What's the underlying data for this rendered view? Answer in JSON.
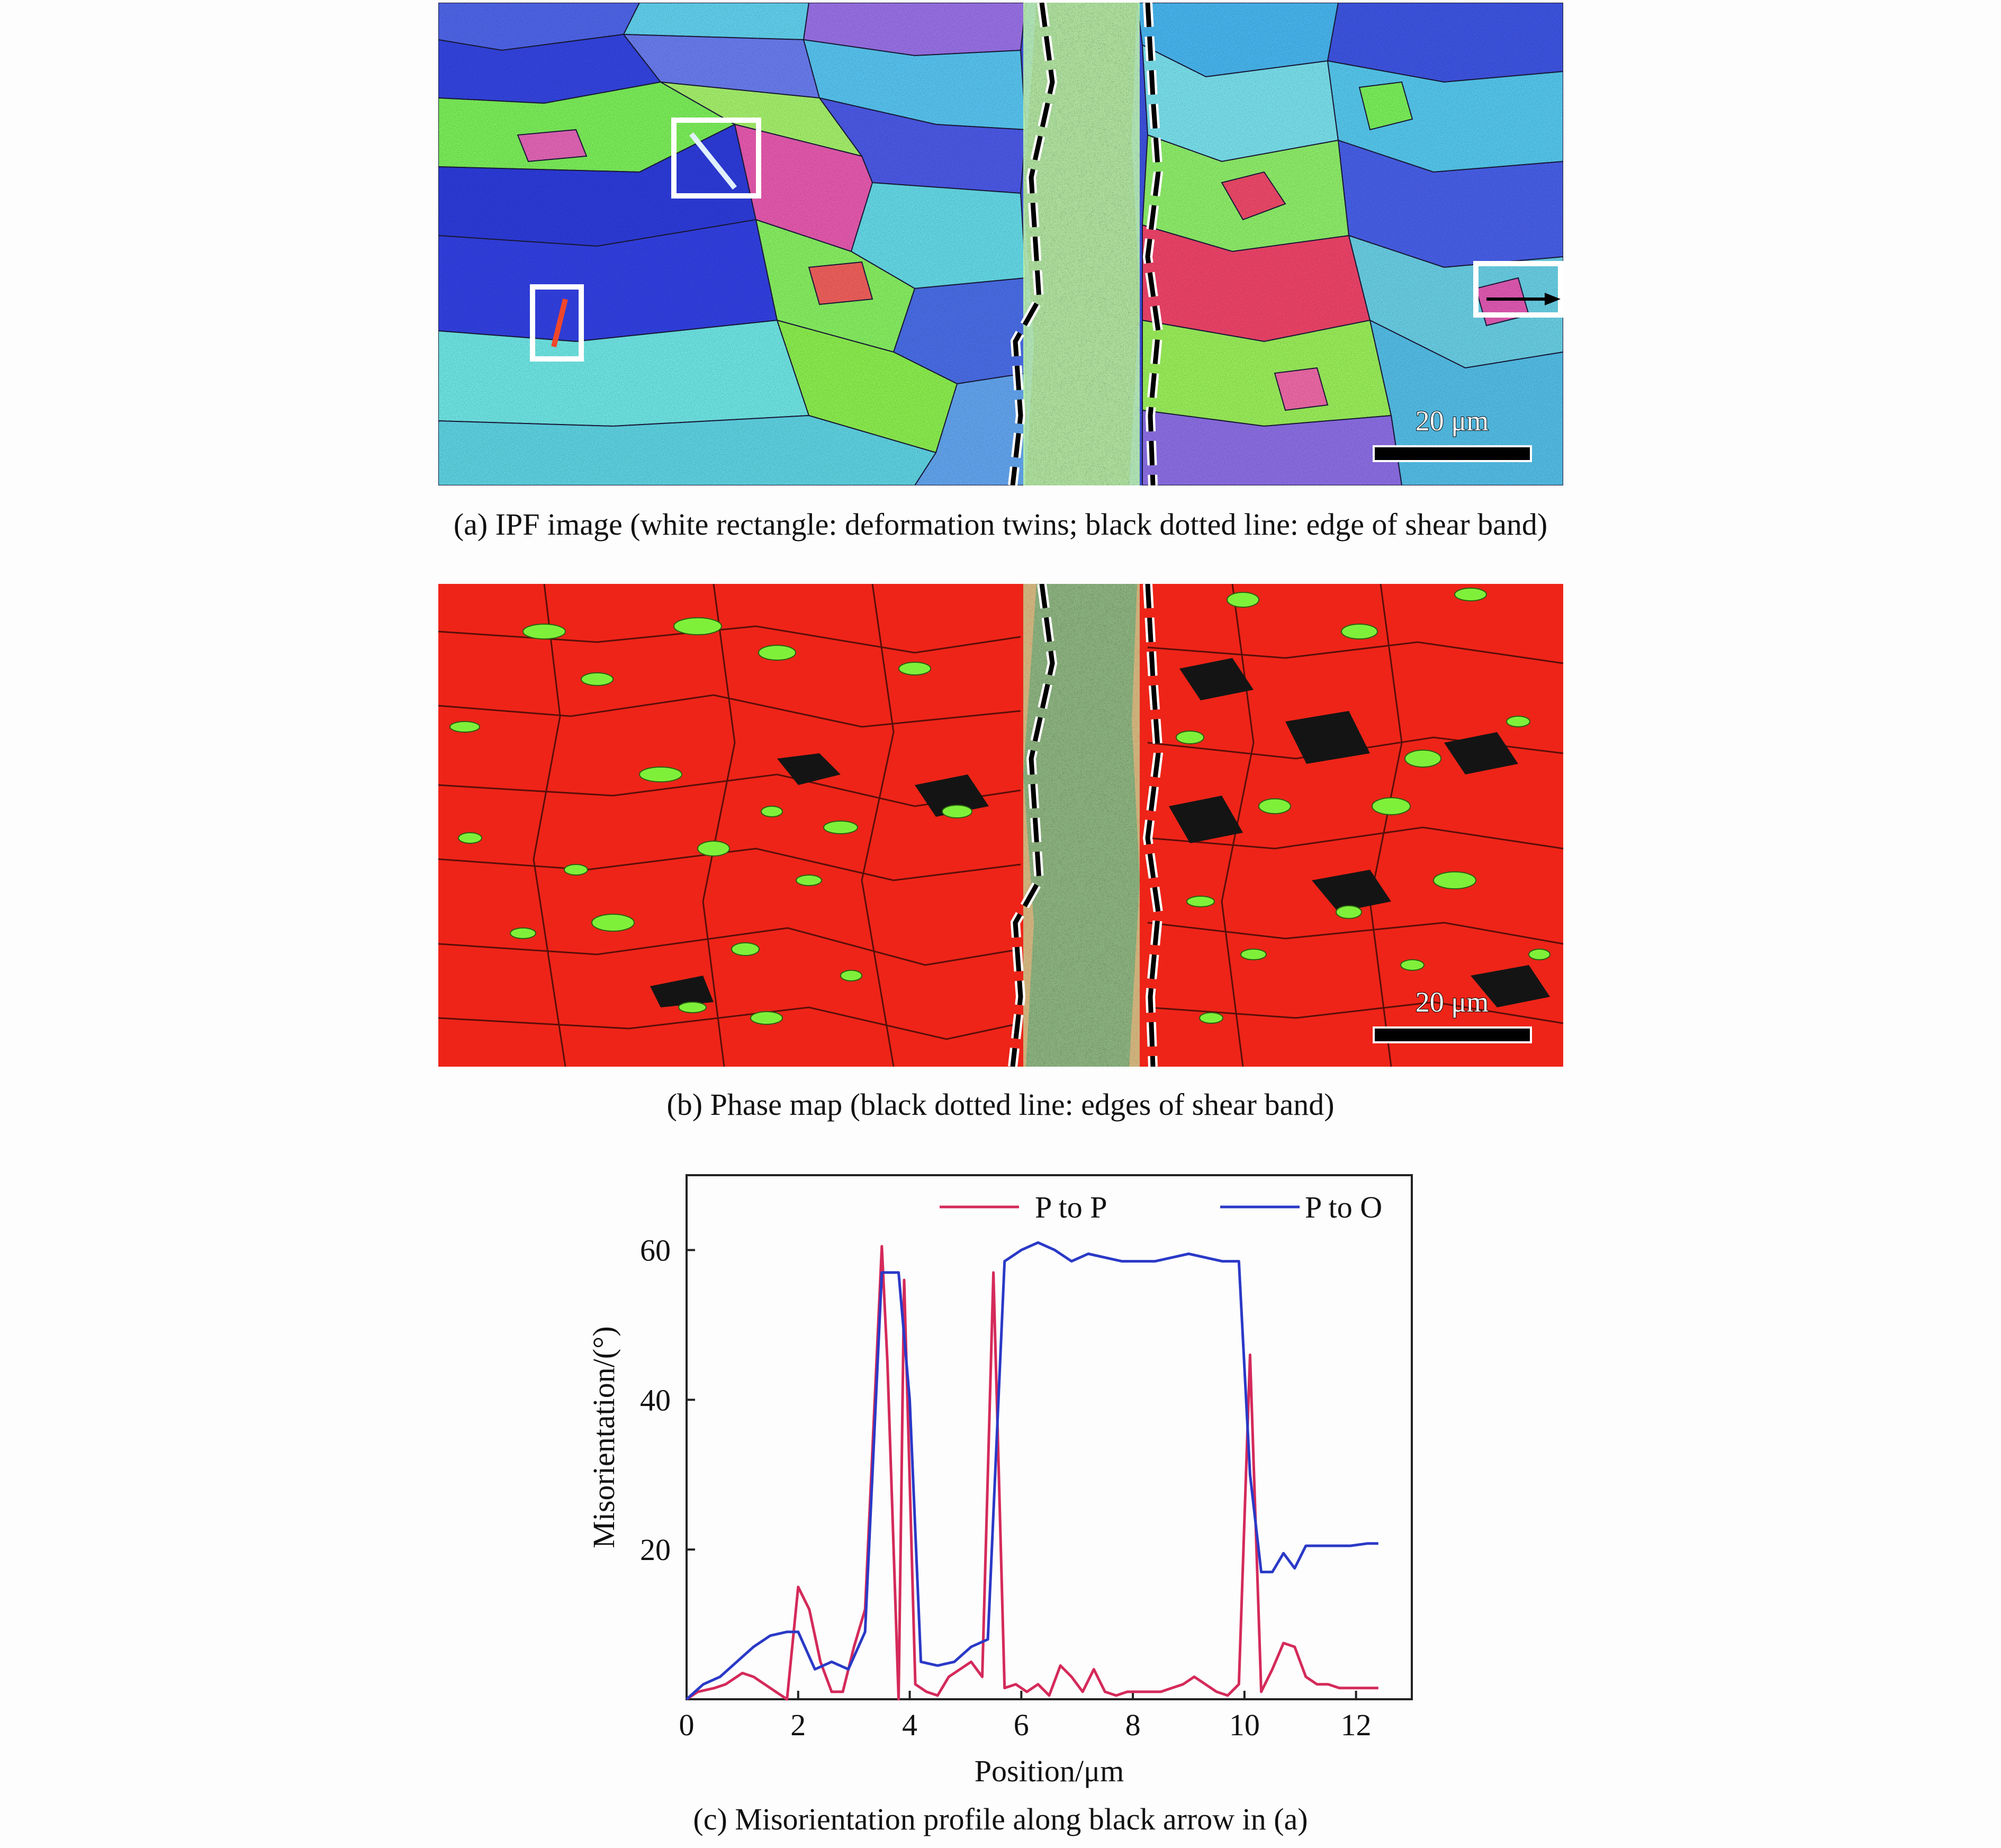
{
  "figure": {
    "caption_a": "(a) IPF image (white rectangle: deformation twins; black dotted line: edge of shear band)",
    "caption_b": "(b) Phase map (black dotted line: edges of shear band)",
    "caption_c": "(c) Misorientation profile along black arrow in (a)",
    "scale_bar_a": "20 μm",
    "scale_bar_b": "20 μm",
    "colors": {
      "ipf_blue": "#2f45e6",
      "ipf_green": "#7ef05a",
      "ipf_cyan": "#5ec8ee",
      "ipf_pink": "#f05aa8",
      "ipf_purple": "#8e5be0",
      "phase_red": "#ee2418",
      "phase_green": "#7ff03a",
      "band_black": "#141414"
    }
  },
  "chart_data": {
    "type": "line",
    "title": "",
    "xlabel": "Position/μm",
    "ylabel": "Misorientation/(°)",
    "xlim": [
      0,
      13
    ],
    "ylim": [
      0,
      70
    ],
    "xticks": [
      0,
      2,
      4,
      6,
      8,
      10,
      12
    ],
    "yticks": [
      20,
      40,
      60
    ],
    "legend_position": "top",
    "grid": false,
    "series": [
      {
        "name": "P to P",
        "color": "#d42a5a",
        "x": [
          0,
          0.2,
          0.5,
          0.7,
          1.0,
          1.2,
          1.4,
          1.6,
          1.8,
          2.0,
          2.2,
          2.4,
          2.6,
          2.8,
          3.0,
          3.2,
          3.5,
          3.6,
          3.8,
          3.9,
          4.1,
          4.3,
          4.5,
          4.7,
          4.9,
          5.1,
          5.3,
          5.5,
          5.7,
          5.9,
          6.1,
          6.3,
          6.5,
          6.7,
          6.9,
          7.1,
          7.3,
          7.5,
          7.7,
          7.9,
          8.1,
          8.3,
          8.5,
          8.7,
          8.9,
          9.1,
          9.3,
          9.5,
          9.7,
          9.9,
          10.1,
          10.3,
          10.5,
          10.7,
          10.9,
          11.1,
          11.3,
          11.5,
          11.7,
          11.9,
          12.1,
          12.4
        ],
        "values": [
          0,
          1,
          1.5,
          2,
          3.5,
          3,
          2,
          1,
          0,
          15,
          12,
          5,
          1,
          1,
          7,
          12,
          60.5,
          45,
          0,
          56,
          2,
          1,
          0.5,
          3,
          4,
          5,
          3,
          57,
          1.5,
          2,
          1,
          2,
          0.5,
          4.5,
          3,
          1,
          4,
          1,
          0.5,
          1,
          1,
          1,
          1,
          1.5,
          2,
          3,
          2,
          1,
          0.5,
          2,
          46,
          1,
          4,
          7.5,
          7,
          3,
          2,
          2,
          1.5,
          1.5,
          1.5,
          1.5
        ]
      },
      {
        "name": "P to O",
        "color": "#2a39c7",
        "x": [
          0,
          0.3,
          0.6,
          0.9,
          1.2,
          1.5,
          1.8,
          2.0,
          2.3,
          2.6,
          2.9,
          3.2,
          3.5,
          3.8,
          4.0,
          4.2,
          4.5,
          4.8,
          5.1,
          5.4,
          5.7,
          6.0,
          6.3,
          6.6,
          6.9,
          7.2,
          7.5,
          7.8,
          8.1,
          8.4,
          8.7,
          9.0,
          9.3,
          9.6,
          9.9,
          10.1,
          10.3,
          10.5,
          10.7,
          10.9,
          11.1,
          11.3,
          11.6,
          11.9,
          12.2,
          12.4
        ],
        "values": [
          0,
          2,
          3,
          5,
          7,
          8.5,
          9,
          9,
          4,
          5,
          4,
          9,
          57,
          57,
          40,
          5,
          4.5,
          5,
          7,
          8,
          58.5,
          60,
          61,
          60,
          58.5,
          59.5,
          59,
          58.5,
          58.5,
          58.5,
          59,
          59.5,
          59,
          58.5,
          58.5,
          30,
          17,
          17,
          19.5,
          17.5,
          20.5,
          20.5,
          20.5,
          20.5,
          20.8,
          20.8
        ]
      }
    ]
  }
}
